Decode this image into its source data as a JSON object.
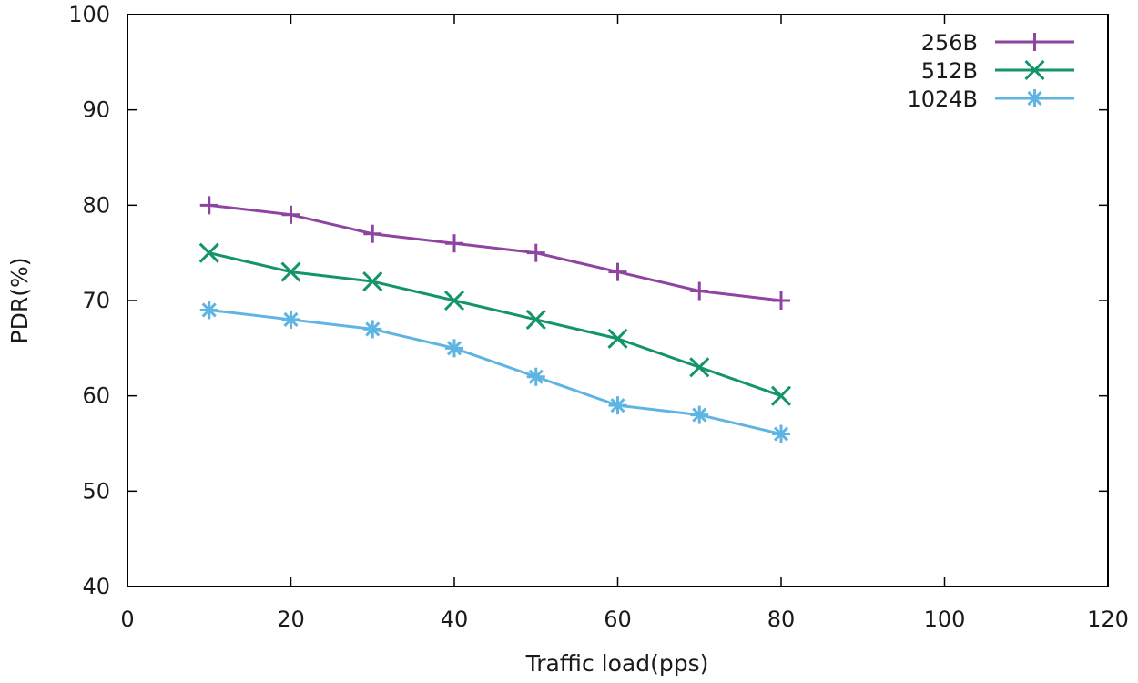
{
  "chart_data": {
    "type": "line",
    "title": "",
    "xlabel": "Traffic load(pps)",
    "ylabel": "PDR(%)",
    "xlim": [
      0,
      120
    ],
    "ylim": [
      40,
      100
    ],
    "xticks": [
      0,
      20,
      40,
      60,
      80,
      100,
      120
    ],
    "yticks": [
      40,
      50,
      60,
      70,
      80,
      90,
      100
    ],
    "grid": false,
    "legend_position": "top-right",
    "x": [
      10,
      20,
      30,
      40,
      50,
      60,
      70,
      80
    ],
    "series": [
      {
        "name": "256B",
        "color": "#8e44a0",
        "marker": "plus",
        "values": [
          80,
          79,
          77,
          76,
          75,
          73,
          71,
          70
        ]
      },
      {
        "name": "512B",
        "color": "#13946a",
        "marker": "cross",
        "values": [
          75,
          73,
          72,
          70,
          68,
          66,
          63,
          60
        ]
      },
      {
        "name": "1024B",
        "color": "#5eb5e3",
        "marker": "star",
        "values": [
          69,
          68,
          67,
          65,
          62,
          59,
          58,
          56
        ]
      }
    ]
  }
}
